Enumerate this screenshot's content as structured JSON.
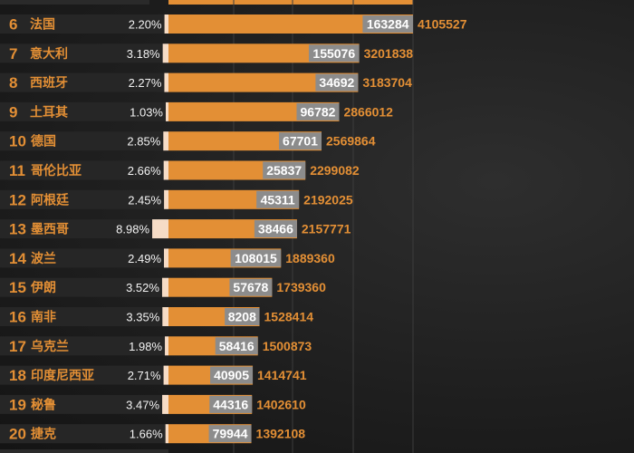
{
  "chart_data": {
    "type": "bar",
    "title": "",
    "xlabel": "",
    "ylabel": "",
    "columns": [
      "rank",
      "country",
      "death_rate_pct",
      "deaths",
      "cases"
    ],
    "rows": [
      {
        "rank": "6",
        "country": "法国",
        "rate": "2.20%",
        "deaths": 163284,
        "cases": 4105527
      },
      {
        "rank": "7",
        "country": "意大利",
        "rate": "3.18%",
        "deaths": 155076,
        "cases": 3201838
      },
      {
        "rank": "8",
        "country": "西班牙",
        "rate": "2.27%",
        "deaths": 34692,
        "cases": 3183704
      },
      {
        "rank": "9",
        "country": "土耳其",
        "rate": "1.03%",
        "deaths": 96782,
        "cases": 2866012
      },
      {
        "rank": "10",
        "country": "德国",
        "rate": "2.85%",
        "deaths": 67701,
        "cases": 2569864
      },
      {
        "rank": "11",
        "country": "哥伦比亚",
        "rate": "2.66%",
        "deaths": 25837,
        "cases": 2299082
      },
      {
        "rank": "12",
        "country": "阿根廷",
        "rate": "2.45%",
        "deaths": 45311,
        "cases": 2192025
      },
      {
        "rank": "13",
        "country": "墨西哥",
        "rate": "8.98%",
        "deaths": 38466,
        "cases": 2157771
      },
      {
        "rank": "14",
        "country": "波兰",
        "rate": "2.49%",
        "deaths": 108015,
        "cases": 1889360
      },
      {
        "rank": "15",
        "country": "伊朗",
        "rate": "3.52%",
        "deaths": 57678,
        "cases": 1739360
      },
      {
        "rank": "16",
        "country": "南非",
        "rate": "3.35%",
        "deaths": 8208,
        "cases": 1528414
      },
      {
        "rank": "17",
        "country": "乌克兰",
        "rate": "1.98%",
        "deaths": 58416,
        "cases": 1500873
      },
      {
        "rank": "18",
        "country": "印度尼西亚",
        "rate": "2.71%",
        "deaths": 40905,
        "cases": 1414741
      },
      {
        "rank": "19",
        "country": "秘鲁",
        "rate": "3.47%",
        "deaths": 44316,
        "cases": 1402610
      },
      {
        "rank": "20",
        "country": "捷克",
        "rate": "1.66%",
        "deaths": 79944,
        "cases": 1392108
      }
    ],
    "rate_percent": [
      2.2,
      3.18,
      2.27,
      1.03,
      2.85,
      2.66,
      2.45,
      8.98,
      2.49,
      3.52,
      3.35,
      1.98,
      2.71,
      3.47,
      1.66
    ],
    "colors": {
      "bar": "#e38f35",
      "rate_bar": "#f6dcc6",
      "deaths_label_bg": "#8c8c8c",
      "rank_text": "#e38f35",
      "text": "#f2f2f2"
    }
  }
}
